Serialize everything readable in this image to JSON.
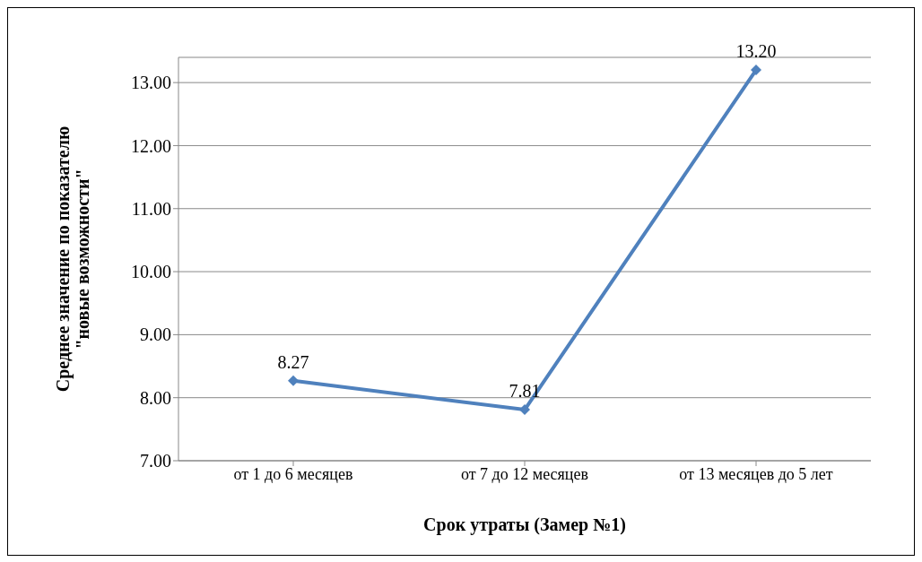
{
  "chart_data": {
    "type": "line",
    "xlabel": "Срок утраты (Замер №1)",
    "ylabel": "Среднее значение по показателю\n\"новые возможности\"",
    "categories": [
      "от 1 до 6 месяцев",
      "от 7 до 12 месяцев",
      "от 13 месяцев до 5 лет"
    ],
    "series": [
      {
        "color": "#4f81bd",
        "values": [
          8.27,
          7.81,
          13.2
        ],
        "value_labels": [
          "8.27",
          "7.81",
          "13.20"
        ]
      }
    ],
    "ylim": [
      7,
      13.4
    ],
    "yticks": [
      {
        "value": 7,
        "label": "7.00"
      },
      {
        "value": 8,
        "label": "8.00"
      },
      {
        "value": 9,
        "label": "9.00"
      },
      {
        "value": 10,
        "label": "10.00"
      },
      {
        "value": 11,
        "label": "11.00"
      },
      {
        "value": 12,
        "label": "12.00"
      },
      {
        "value": 13,
        "label": "13.00"
      }
    ],
    "grid": "y",
    "marker": "diamond",
    "line_style": "solid",
    "legend": false
  }
}
